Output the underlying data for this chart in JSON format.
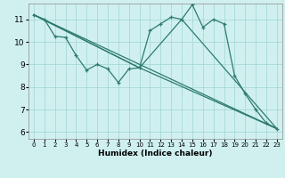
{
  "xlabel": "Humidex (Indice chaleur)",
  "bg_color": "#d0f0f0",
  "plot_bg_color": "#d0f0f0",
  "grid_color": "#a8d8d8",
  "line_color": "#2d7a6e",
  "xlim": [
    -0.5,
    23.5
  ],
  "ylim": [
    5.7,
    11.7
  ],
  "yticks": [
    6,
    7,
    8,
    9,
    10,
    11
  ],
  "xticks": [
    0,
    1,
    2,
    3,
    4,
    5,
    6,
    7,
    8,
    9,
    10,
    11,
    12,
    13,
    14,
    15,
    16,
    17,
    18,
    19,
    20,
    21,
    22,
    23
  ],
  "line_main_x": [
    0,
    1,
    2,
    3,
    4,
    5,
    6,
    7,
    8,
    9,
    10,
    11,
    12,
    13,
    14,
    15,
    16,
    17,
    18,
    19,
    20,
    21,
    22,
    23
  ],
  "line_main_y": [
    11.2,
    11.0,
    10.25,
    10.2,
    9.4,
    8.75,
    9.0,
    8.8,
    8.2,
    8.8,
    8.85,
    10.5,
    10.8,
    11.1,
    11.0,
    11.65,
    10.65,
    11.0,
    10.8,
    8.5,
    7.7,
    7.0,
    6.4,
    6.15
  ],
  "trend_lines": [
    {
      "x": [
        0,
        23
      ],
      "y": [
        11.2,
        6.15
      ]
    },
    {
      "x": [
        0,
        10,
        23
      ],
      "y": [
        11.2,
        8.85,
        6.15
      ]
    },
    {
      "x": [
        0,
        10,
        14,
        23
      ],
      "y": [
        11.2,
        8.85,
        11.0,
        6.15
      ]
    }
  ]
}
